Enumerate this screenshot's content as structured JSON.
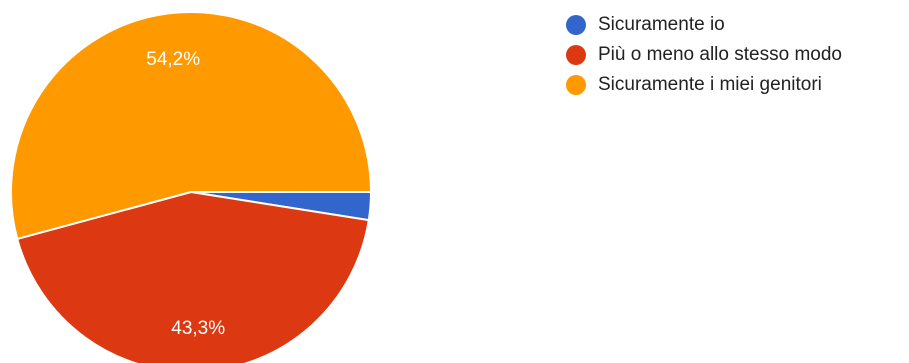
{
  "chart_data": {
    "type": "pie",
    "slices": [
      {
        "name": "Sicuramente io",
        "value": 2.5,
        "color": "#3366cc",
        "label": ""
      },
      {
        "name": "Più o meno allo stesso modo",
        "value": 43.3,
        "color": "#dc3912",
        "label": "43,3%"
      },
      {
        "name": "Sicuramente i miei genitori",
        "value": 54.2,
        "color": "#ff9900",
        "label": "54,2%"
      }
    ],
    "legend_position": "right"
  }
}
